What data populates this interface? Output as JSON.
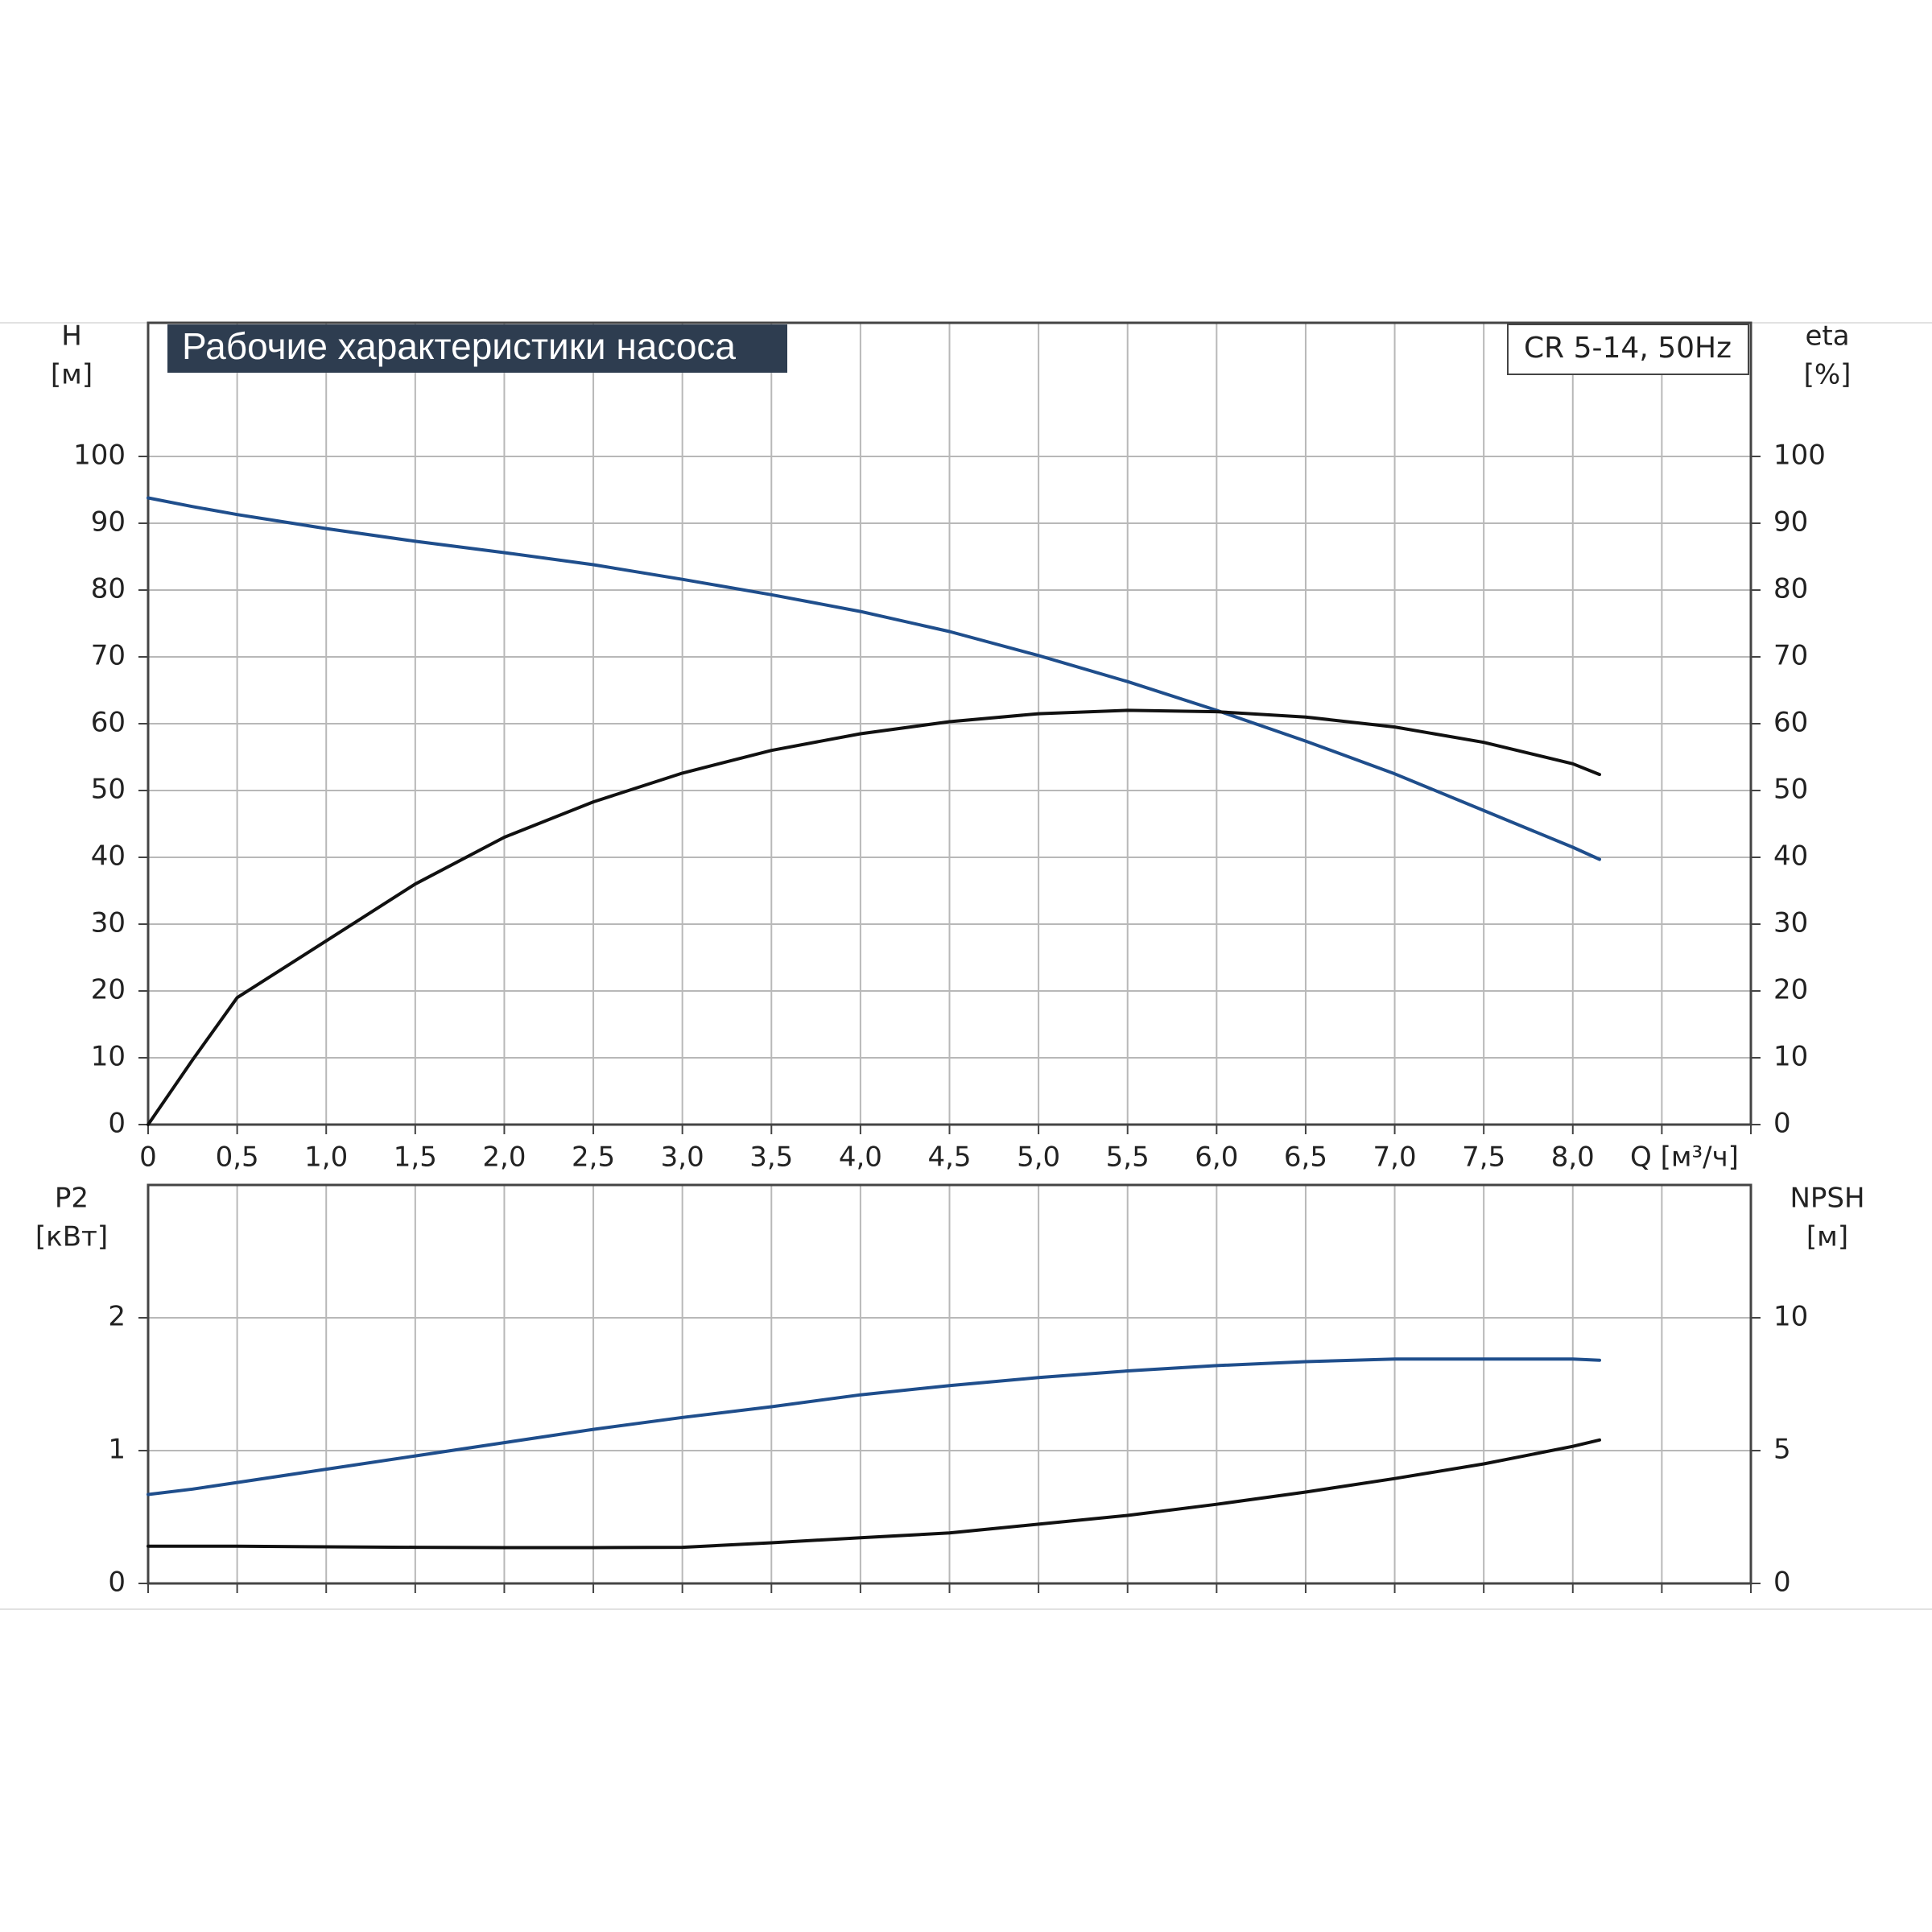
{
  "chart_data": [
    {
      "type": "line",
      "title": "Рабочие характеристики насоса",
      "subtitle": "CR 5-14, 50Hz",
      "ylabel": "H",
      "yunit": "[м]",
      "y2label": "eta",
      "y2unit": "[%]",
      "xlabel": "Q [м³/ч]",
      "xlim": [
        0,
        9
      ],
      "xticks": [
        0,
        {
          "value": 0.5,
          "label": "0,5"
        },
        {
          "value": 1,
          "label": "1,0"
        },
        {
          "value": 1.5,
          "label": "1,5"
        },
        {
          "value": 2,
          "label": "2,0"
        },
        {
          "value": 2.5,
          "label": "2,5"
        },
        {
          "value": 3,
          "label": "3,0"
        },
        {
          "value": 3.5,
          "label": "3,5"
        },
        {
          "value": 4,
          "label": "4,0"
        },
        {
          "value": 4.5,
          "label": "4,5"
        },
        {
          "value": 5,
          "label": "5,0"
        },
        {
          "value": 5.5,
          "label": "5,5"
        },
        {
          "value": 6,
          "label": "6,0"
        },
        {
          "value": 6.5,
          "label": "6,5"
        },
        {
          "value": 7,
          "label": "7,0"
        },
        {
          "value": 7.5,
          "label": "7,5"
        },
        {
          "value": 8,
          "label": "8,0"
        },
        {
          "value": 8.5,
          "label": null
        },
        {
          "value": 9,
          "label": null
        }
      ],
      "ylim": [
        0,
        120
      ],
      "yticks": [
        0,
        10,
        20,
        30,
        40,
        50,
        60,
        70,
        80,
        90,
        100
      ],
      "y2lim": [
        0,
        120
      ],
      "y2ticks": [
        0,
        10,
        20,
        30,
        40,
        50,
        60,
        70,
        80,
        90,
        100
      ],
      "grid": true,
      "x": [
        0,
        0.25,
        0.5,
        1,
        1.5,
        2,
        2.5,
        3,
        3.5,
        4,
        4.5,
        5,
        5.5,
        6,
        6.5,
        7,
        7.5,
        8,
        8.15
      ],
      "series": [
        {
          "color": "#1f4e8c",
          "values": [
            93.8,
            92.5,
            91.3,
            89.2,
            87.3,
            85.6,
            83.8,
            81.6,
            79.3,
            76.8,
            73.8,
            70.2,
            66.3,
            62.0,
            57.4,
            52.5,
            47.0,
            41.5,
            39.7
          ]
        },
        {
          "color": "#111111",
          "axis": "y2",
          "values": [
            0,
            9.7,
            19,
            27.5,
            36,
            43,
            48.3,
            52.6,
            56,
            58.5,
            60.3,
            61.5,
            62.0,
            61.8,
            61.0,
            59.5,
            57.2,
            54.0,
            52.4
          ]
        }
      ]
    },
    {
      "type": "line",
      "ylabel": "P2",
      "yunit": "[кВт]",
      "y2label": "NPSH",
      "y2unit": "[м]",
      "xlim": [
        0,
        9
      ],
      "xticks": [
        0,
        0.5,
        1,
        1.5,
        2,
        2.5,
        3,
        3.5,
        4,
        4.5,
        5,
        5.5,
        6,
        6.5,
        7,
        7.5,
        8,
        8.5,
        9
      ],
      "ylim": [
        0,
        3
      ],
      "yticks": [
        0,
        1,
        2
      ],
      "y2lim": [
        0,
        15
      ],
      "y2ticks": [
        0,
        5,
        10
      ],
      "grid": true,
      "x": [
        0,
        0.25,
        0.5,
        1,
        1.5,
        2,
        2.5,
        3,
        3.5,
        4,
        4.5,
        5,
        5.5,
        6,
        6.5,
        7,
        7.5,
        8,
        8.15
      ],
      "series": [
        {
          "color": "#1f4e8c",
          "values": [
            0.67,
            0.71,
            0.76,
            0.86,
            0.96,
            1.06,
            1.16,
            1.25,
            1.33,
            1.42,
            1.49,
            1.55,
            1.6,
            1.64,
            1.67,
            1.69,
            1.69,
            1.69,
            1.68
          ]
        },
        {
          "color": "#111111",
          "axis": "y2",
          "values": [
            1.4,
            1.4,
            1.4,
            1.38,
            1.36,
            1.35,
            1.35,
            1.36,
            1.53,
            1.72,
            1.9,
            2.23,
            2.56,
            2.98,
            3.44,
            3.95,
            4.5,
            5.16,
            5.4
          ]
        }
      ]
    }
  ]
}
